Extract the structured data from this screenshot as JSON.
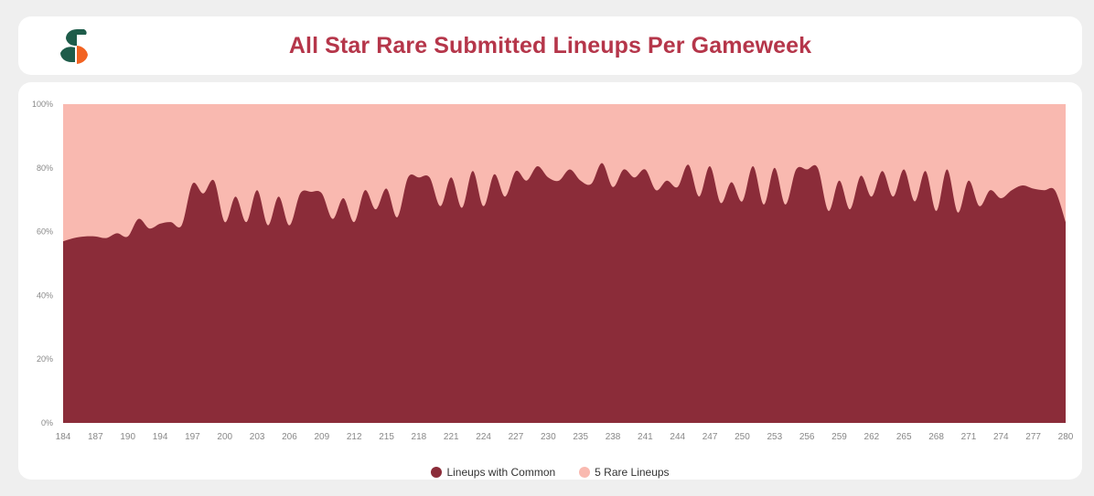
{
  "header": {
    "title": "All Star Rare Submitted Lineups Per Gameweek",
    "logo_colors": {
      "green": "#1e5c4a",
      "orange": "#f26322"
    }
  },
  "chart_data": {
    "type": "area",
    "stacked": true,
    "percent_stacked": true,
    "title": "All Star Rare Submitted Lineups Per Gameweek",
    "ylim": [
      0,
      100
    ],
    "y_ticks": [
      "0%",
      "20%",
      "40%",
      "60%",
      "80%",
      "100%"
    ],
    "x_tick_labels": [
      "184",
      "187",
      "190",
      "194",
      "197",
      "200",
      "203",
      "206",
      "209",
      "212",
      "215",
      "218",
      "221",
      "224",
      "227",
      "230",
      "235",
      "238",
      "241",
      "244",
      "247",
      "250",
      "253",
      "256",
      "259",
      "262",
      "265",
      "268",
      "271",
      "274",
      "277",
      "280"
    ],
    "legend_position": "bottom",
    "series": [
      {
        "name": "Lineups with Common",
        "color": "#8b2c39",
        "values": [
          57,
          58,
          58.5,
          58.5,
          58,
          59.5,
          58.5,
          64,
          61,
          62.5,
          63,
          62,
          75,
          72,
          76,
          63,
          71,
          63,
          73,
          62,
          71,
          62,
          72,
          72.5,
          72,
          64,
          70.5,
          63,
          73,
          67,
          73.5,
          64.5,
          77,
          77,
          77,
          68,
          77,
          67.5,
          79,
          68,
          78,
          71,
          79,
          76,
          80.5,
          77,
          76,
          79.5,
          76,
          75,
          81.5,
          74,
          79.5,
          77,
          79.5,
          73,
          76,
          74,
          81,
          71,
          80.5,
          69,
          75.5,
          69.5,
          80.5,
          68.5,
          80,
          68.5,
          79.5,
          79.5,
          80,
          66.5,
          76,
          67,
          77.5,
          71,
          79,
          71,
          79.5,
          69.5,
          79,
          66.5,
          79.5,
          66,
          76,
          68,
          73,
          70.5,
          73,
          74.5,
          73.5,
          73,
          73,
          63
        ]
      },
      {
        "name": "5 Rare Lineups",
        "color": "#f9b9b0",
        "values": "remainder to 100%"
      }
    ]
  },
  "legend": {
    "items": [
      {
        "label": "Lineups with Common",
        "color": "#8b2c39"
      },
      {
        "label": "5 Rare Lineups",
        "color": "#f9b9b0"
      }
    ]
  }
}
